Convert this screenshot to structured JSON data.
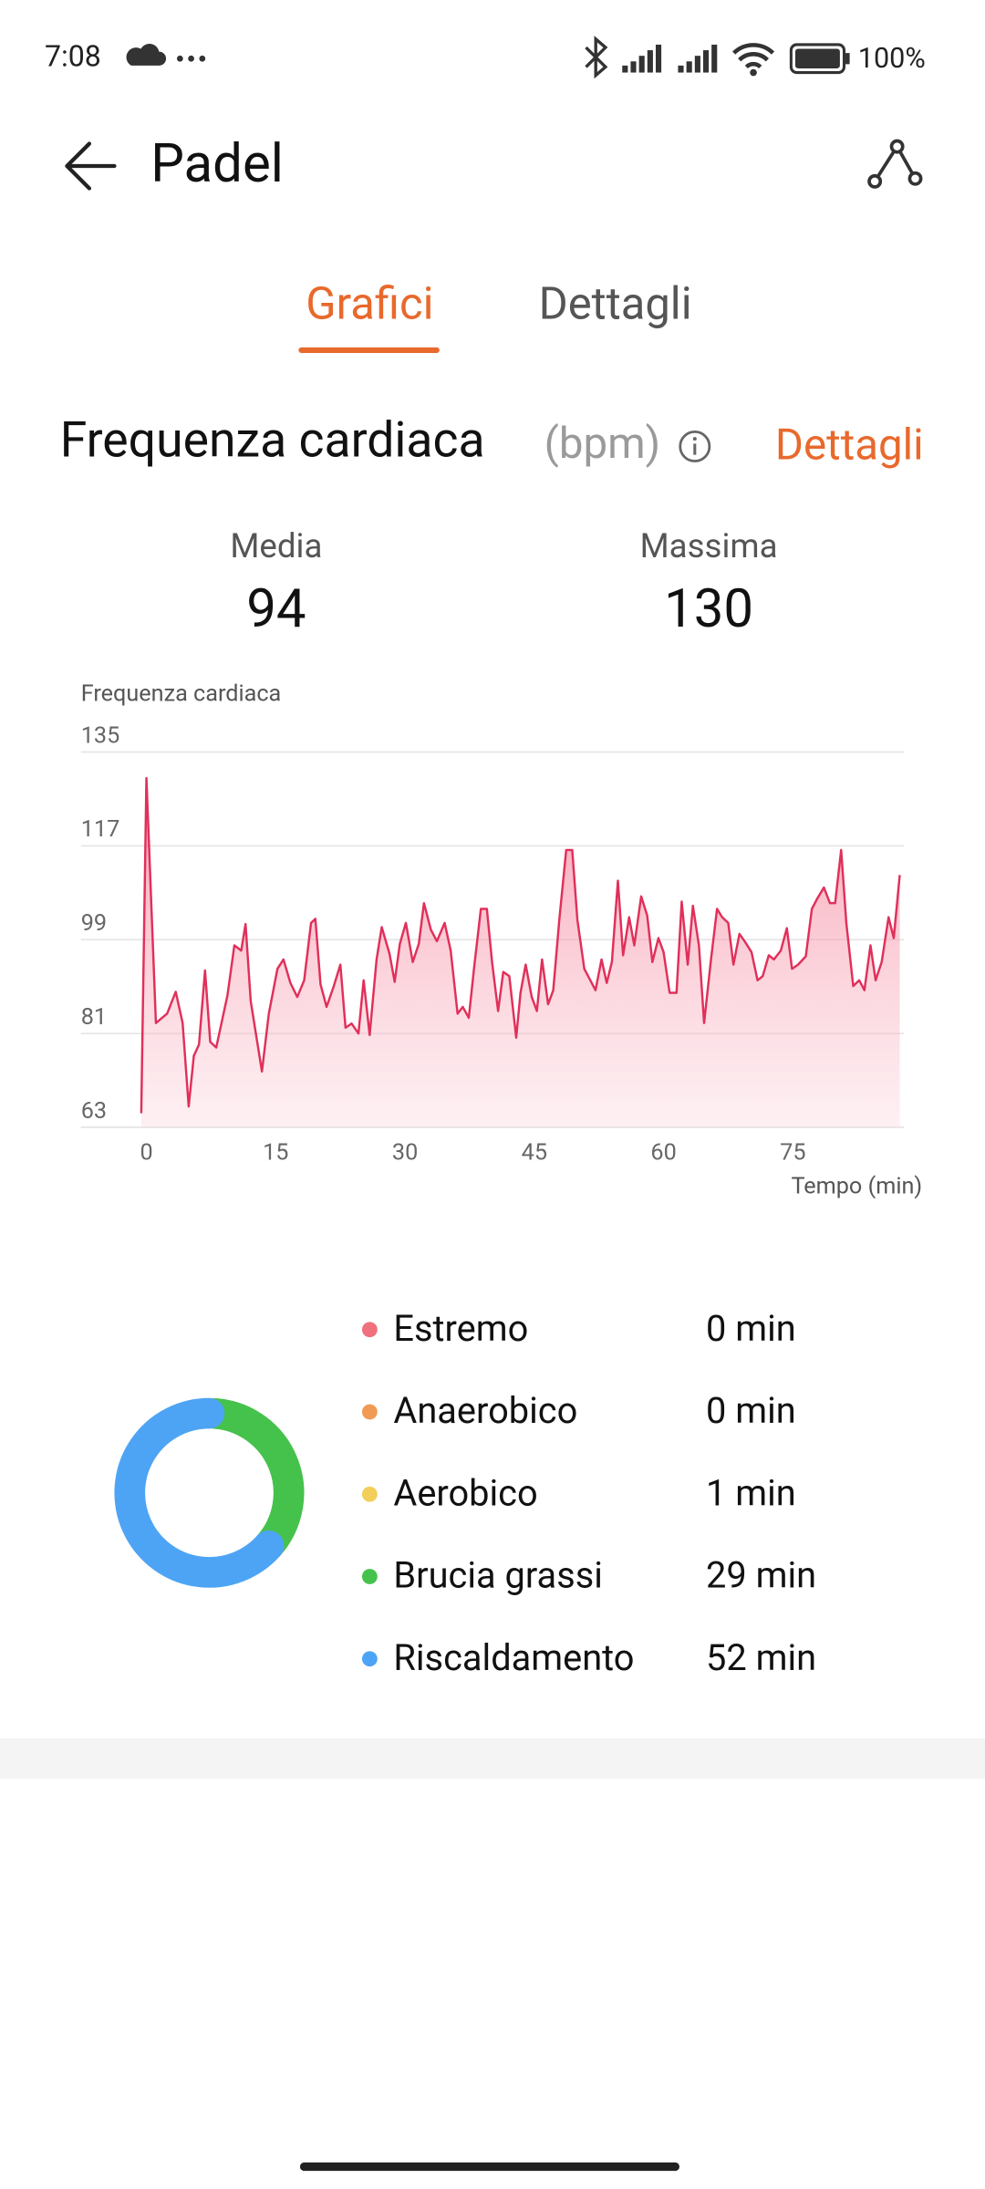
{
  "status_bar": {
    "time": "7:08",
    "battery": "100%"
  },
  "header": {
    "title": "Padel"
  },
  "tabs": [
    "Grafici",
    "Dettagli"
  ],
  "section": {
    "title": "Frequenza cardiaca",
    "unit": "(bpm)",
    "link": "Dettagli"
  },
  "stats": [
    {
      "label": "Media",
      "value": "94"
    },
    {
      "label": "Massima",
      "value": "130"
    }
  ],
  "chart_data": [
    {
      "type": "line",
      "title": "Frequenza cardiaca",
      "x_label": "Tempo (min)",
      "color": "#e0305a",
      "grid": true,
      "xlim": [
        -7.6,
        87.9
      ],
      "ylim": [
        63,
        135
      ],
      "xticks": [
        0,
        15,
        30,
        45,
        60,
        75
      ],
      "yticks": [
        63,
        81,
        99,
        117,
        135
      ],
      "x": [
        -0.6,
        0,
        1.1,
        2.4,
        3.4,
        4.2,
        4.9,
        5.5,
        6.1,
        6.8,
        7.4,
        8.1,
        9.4,
        10.2,
        11,
        11.5,
        12.1,
        13.4,
        14.2,
        15.2,
        15.9,
        16.7,
        17.5,
        18.3,
        19.1,
        19.6,
        20.2,
        20.9,
        21.7,
        22.5,
        23.1,
        23.8,
        24.6,
        25.2,
        25.9,
        26.7,
        27.3,
        28.2,
        28.8,
        29.4,
        30.1,
        30.9,
        31.6,
        32.2,
        33,
        33.7,
        34.6,
        35.3,
        36.1,
        36.7,
        37.4,
        38,
        38.8,
        39.5,
        40.1,
        40.8,
        41.4,
        42.1,
        42.9,
        43.4,
        44,
        44.7,
        45.3,
        45.9,
        46.6,
        47.2,
        47.9,
        48.7,
        49.4,
        50,
        50.8,
        51.5,
        52.1,
        52.8,
        53.4,
        54,
        54.7,
        55.3,
        56,
        56.6,
        57.4,
        58.1,
        58.7,
        59.4,
        60,
        60.7,
        61.5,
        62.1,
        62.8,
        63.4,
        64.1,
        64.7,
        65.5,
        66.2,
        66.8,
        67.5,
        68.1,
        68.8,
        69.4,
        70.2,
        70.9,
        71.5,
        72.2,
        72.8,
        73.6,
        74.3,
        74.9,
        75.6,
        76.5,
        77.2,
        77.8,
        78.6,
        79.3,
        79.9,
        80.6,
        81.2,
        82,
        82.7,
        83.3,
        84,
        84.6,
        85.3,
        86.1,
        86.7,
        87.4
      ],
      "values": [
        65.7,
        130,
        83,
        84.8,
        89,
        83,
        67,
        76.7,
        78.9,
        93.1,
        79.4,
        78.3,
        88.3,
        97.9,
        96.9,
        102,
        87.2,
        73.7,
        84.8,
        93.4,
        95.2,
        90.7,
        88,
        91.2,
        102.2,
        103,
        90.4,
        86.1,
        89.9,
        94.2,
        82.1,
        82.9,
        81,
        91.2,
        80.7,
        95.2,
        101.4,
        96.3,
        90.9,
        98.2,
        102.2,
        94.7,
        98.2,
        106,
        100.9,
        98.7,
        102.2,
        96.9,
        84.8,
        86.1,
        84,
        93.4,
        104.9,
        104.9,
        94.7,
        85.3,
        92.8,
        92,
        80.2,
        88.8,
        94.2,
        88,
        85.3,
        95.2,
        86.6,
        89.3,
        102.8,
        116.2,
        116.2,
        102.8,
        93.4,
        91.2,
        89.3,
        95.2,
        90.7,
        94.7,
        110.3,
        96,
        103.3,
        97.9,
        107.3,
        103.6,
        94.7,
        99.3,
        96.6,
        88.8,
        88.8,
        106.3,
        94.2,
        105.5,
        97.9,
        83,
        95.2,
        104.9,
        103.3,
        102.2,
        94.2,
        100.1,
        98.7,
        96.6,
        91.2,
        92,
        96,
        95.2,
        96.9,
        101.2,
        93.4,
        94.2,
        95.8,
        104.9,
        106.8,
        109,
        106,
        106,
        116.2,
        102.2,
        90.1,
        91.2,
        89.3,
        97.9,
        91.2,
        94.7,
        103.3,
        99.3,
        111.4
      ]
    },
    {
      "type": "donut",
      "categories": [
        "Estremo",
        "Anaerobico",
        "Aerobico",
        "Brucia grassi",
        "Riscaldamento"
      ],
      "values": [
        0,
        0,
        1,
        29,
        52
      ],
      "value_labels": [
        "0 min",
        "0 min",
        "1 min",
        "29 min",
        "52 min"
      ],
      "colors": [
        "#f0707e",
        "#f09a55",
        "#f2cf58",
        "#45c24c",
        "#4ea4f4"
      ]
    }
  ]
}
